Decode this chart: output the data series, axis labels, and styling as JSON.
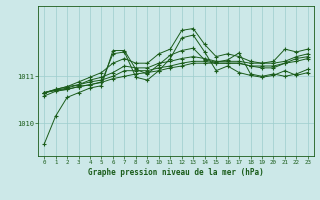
{
  "title": "Graphe pression niveau de la mer (hPa)",
  "bg_color": "#cce8e8",
  "line_color": "#1a5c1a",
  "grid_color": "#9ecece",
  "xlim": [
    -0.5,
    23.5
  ],
  "ylim": [
    1009.3,
    1012.5
  ],
  "yticks": [
    1010,
    1011
  ],
  "xtick_labels": [
    "0",
    "1",
    "2",
    "3",
    "4",
    "5",
    "6",
    "7",
    "8",
    "9",
    "10",
    "11",
    "12",
    "13",
    "14",
    "15",
    "16",
    "17",
    "18",
    "19",
    "20",
    "21",
    "22",
    "23"
  ],
  "series": [
    [
      1009.55,
      1010.15,
      1010.55,
      1010.65,
      1010.75,
      1010.8,
      1011.55,
      1011.55,
      1011.15,
      1011.05,
      1011.25,
      1011.45,
      1011.55,
      1011.6,
      1011.35,
      1011.3,
      1011.35,
      1011.5,
      1011.05,
      1011.0,
      1011.05,
      1011.0,
      1011.05,
      1011.15
    ],
    [
      1010.65,
      1010.7,
      1010.72,
      1010.78,
      1010.82,
      1010.87,
      1010.95,
      1011.0,
      1011.05,
      1011.08,
      1011.12,
      1011.18,
      1011.22,
      1011.28,
      1011.28,
      1011.28,
      1011.28,
      1011.28,
      1011.22,
      1011.22,
      1011.22,
      1011.28,
      1011.32,
      1011.38
    ],
    [
      1010.65,
      1010.7,
      1010.75,
      1010.82,
      1010.88,
      1010.92,
      1011.0,
      1011.12,
      1011.12,
      1011.12,
      1011.18,
      1011.22,
      1011.28,
      1011.32,
      1011.32,
      1011.28,
      1011.28,
      1011.28,
      1011.22,
      1011.18,
      1011.18,
      1011.28,
      1011.38,
      1011.42
    ],
    [
      1010.65,
      1010.72,
      1010.78,
      1010.82,
      1010.92,
      1010.98,
      1011.08,
      1011.22,
      1011.18,
      1011.18,
      1011.28,
      1011.32,
      1011.38,
      1011.42,
      1011.38,
      1011.32,
      1011.32,
      1011.32,
      1011.28,
      1011.28,
      1011.28,
      1011.32,
      1011.42,
      1011.48
    ],
    [
      1010.65,
      1010.72,
      1010.78,
      1010.88,
      1010.98,
      1011.08,
      1011.28,
      1011.38,
      1011.28,
      1011.28,
      1011.48,
      1011.58,
      1011.98,
      1012.02,
      1011.68,
      1011.42,
      1011.48,
      1011.42,
      1011.32,
      1011.28,
      1011.32,
      1011.58,
      1011.52,
      1011.58
    ],
    [
      1010.58,
      1010.68,
      1010.72,
      1010.78,
      1010.82,
      1010.88,
      1011.48,
      1011.52,
      1010.98,
      1010.92,
      1011.12,
      1011.38,
      1011.82,
      1011.88,
      1011.52,
      1011.12,
      1011.22,
      1011.08,
      1011.02,
      1010.98,
      1011.02,
      1011.12,
      1011.02,
      1011.08
    ]
  ]
}
